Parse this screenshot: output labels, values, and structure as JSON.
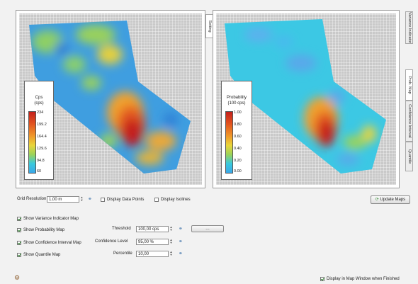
{
  "tabs": {
    "top_tab": "Setting",
    "side_tabs": [
      "Variance Indicator",
      "Prob. Map",
      "Confidence Interval",
      "Quantile"
    ]
  },
  "left_map": {
    "legend_title_1": "Cps",
    "legend_title_2": "(cps)",
    "ticks": [
      "234",
      "199.2",
      "164.4",
      "129.6",
      "94.8",
      "60"
    ],
    "colors": [
      "#c4201c",
      "#e2541f",
      "#f09a2a",
      "#e9d53a",
      "#9bd35a",
      "#39c9dd",
      "#3aa7e8"
    ]
  },
  "right_map": {
    "legend_title_1": "Probability",
    "legend_title_2": "(100 cps)",
    "ticks": [
      "1.00",
      "0.80",
      "0.60",
      "0.40",
      "0.20",
      "0.00"
    ],
    "colors": [
      "#c4201c",
      "#e2541f",
      "#f09a2a",
      "#e9d53a",
      "#9bd35a",
      "#39c9dd",
      "#3aa7e8"
    ]
  },
  "controls": {
    "grid_resolution_label": "Grid Resolution",
    "grid_resolution_value": "1,00 m",
    "display_data_points": "Display Data Points",
    "display_isolines": "Display Isolines",
    "update_maps": "Update Maps",
    "show_variance": "Show Variance Indicator Map",
    "show_probability": "Show Probability Map",
    "threshold_label": "Threshold",
    "threshold_value": "100,00 cps",
    "show_confidence": "Show Confidence Interval Map",
    "confidence_label": "Confidence Level",
    "confidence_value": "95,00 %",
    "show_quantile": "Show Quantile Map",
    "percentile_label": "Percentile",
    "percentile_value": "10,00",
    "display_in_window": "Display in Map Window when Finished"
  }
}
